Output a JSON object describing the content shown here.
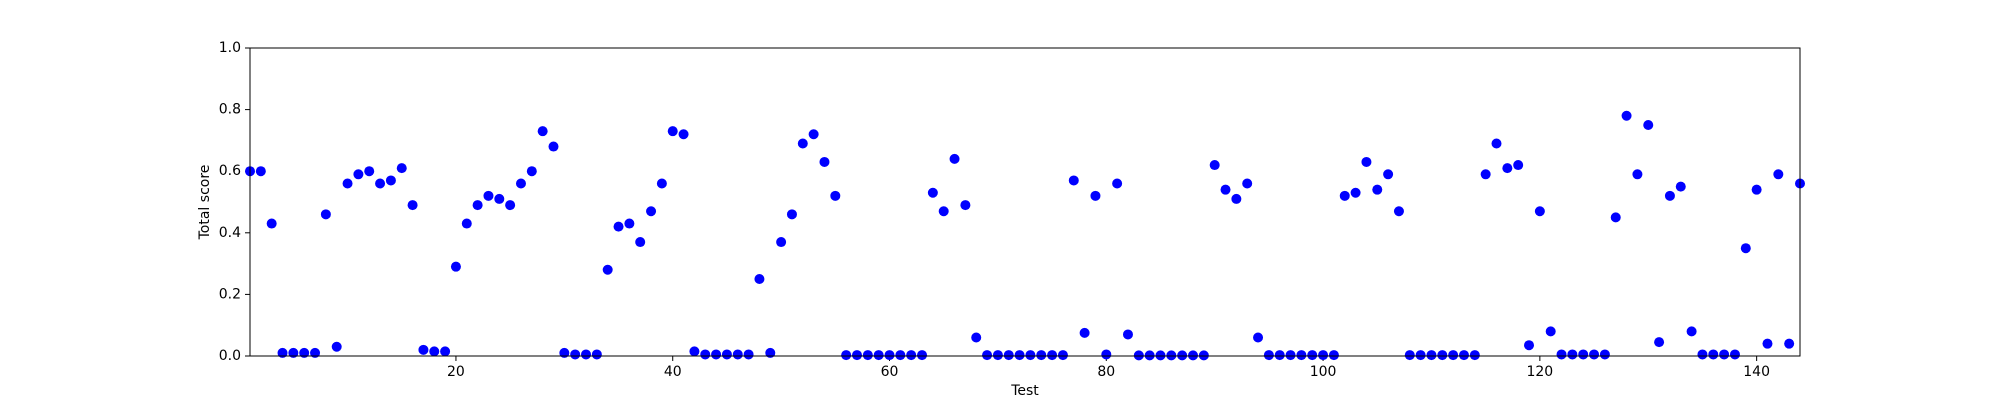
{
  "chart_data": {
    "type": "scatter",
    "xlabel": "Test",
    "ylabel": "Total score",
    "x": [
      1,
      2,
      3,
      4,
      5,
      6,
      7,
      8,
      9,
      10,
      11,
      12,
      13,
      14,
      15,
      16,
      17,
      18,
      19,
      20,
      21,
      22,
      23,
      24,
      25,
      26,
      27,
      28,
      29,
      30,
      31,
      32,
      33,
      34,
      35,
      36,
      37,
      38,
      39,
      40,
      41,
      42,
      43,
      44,
      45,
      46,
      47,
      48,
      49,
      50,
      51,
      52,
      53,
      54,
      55,
      56,
      57,
      58,
      59,
      60,
      61,
      62,
      63,
      64,
      65,
      66,
      67,
      68,
      69,
      70,
      71,
      72,
      73,
      74,
      75,
      76,
      77,
      78,
      79,
      80,
      81,
      82,
      83,
      84,
      85,
      86,
      87,
      88,
      89,
      90,
      91,
      92,
      93,
      94,
      95,
      96,
      97,
      98,
      99,
      100,
      101,
      102,
      103,
      104,
      105,
      106,
      107,
      108,
      109,
      110,
      111,
      112,
      113,
      114,
      115,
      116,
      117,
      118,
      119,
      120,
      121,
      122,
      123,
      124,
      125,
      126,
      127,
      128,
      129,
      130,
      131,
      132,
      133,
      134,
      135,
      136,
      137,
      138,
      139,
      140,
      141,
      142,
      143,
      144
    ],
    "values": [
      0.6,
      0.6,
      0.43,
      0.01,
      0.01,
      0.01,
      0.01,
      0.46,
      0.03,
      0.56,
      0.59,
      0.6,
      0.56,
      0.57,
      0.61,
      0.49,
      0.02,
      0.015,
      0.015,
      0.29,
      0.43,
      0.49,
      0.52,
      0.51,
      0.49,
      0.56,
      0.6,
      0.73,
      0.68,
      0.01,
      0.005,
      0.005,
      0.005,
      0.28,
      0.42,
      0.43,
      0.37,
      0.47,
      0.56,
      0.73,
      0.72,
      0.015,
      0.005,
      0.005,
      0.005,
      0.005,
      0.005,
      0.25,
      0.01,
      0.37,
      0.46,
      0.69,
      0.72,
      0.63,
      0.52,
      0.003,
      0.003,
      0.003,
      0.003,
      0.003,
      0.003,
      0.003,
      0.003,
      0.53,
      0.47,
      0.64,
      0.49,
      0.06,
      0.003,
      0.003,
      0.003,
      0.003,
      0.003,
      0.003,
      0.003,
      0.003,
      0.57,
      0.075,
      0.52,
      0.005,
      0.56,
      0.07,
      0.002,
      0.002,
      0.002,
      0.002,
      0.002,
      0.002,
      0.002,
      0.62,
      0.54,
      0.51,
      0.56,
      0.06,
      0.003,
      0.003,
      0.003,
      0.003,
      0.003,
      0.003,
      0.003,
      0.52,
      0.53,
      0.63,
      0.54,
      0.59,
      0.47,
      0.003,
      0.003,
      0.003,
      0.003,
      0.003,
      0.003,
      0.003,
      0.59,
      0.69,
      0.61,
      0.62,
      0.035,
      0.47,
      0.08,
      0.005,
      0.005,
      0.005,
      0.005,
      0.005,
      0.45,
      0.78,
      0.59,
      0.75,
      0.045,
      0.52,
      0.55,
      0.08,
      0.005,
      0.005,
      0.005,
      0.005,
      0.35,
      0.54,
      0.04,
      0.59,
      0.04,
      0.56
    ],
    "color": "#0000ff",
    "xlim": [
      1,
      144
    ],
    "xticks": [
      20,
      40,
      60,
      80,
      100,
      120,
      140
    ],
    "ylim": [
      0,
      1
    ],
    "yticks": [
      {
        "value": 0,
        "label": "0.0"
      },
      0.2,
      0.4,
      0.6,
      0.8,
      {
        "value": 1,
        "label": "1.0"
      }
    ],
    "grid": false
  }
}
